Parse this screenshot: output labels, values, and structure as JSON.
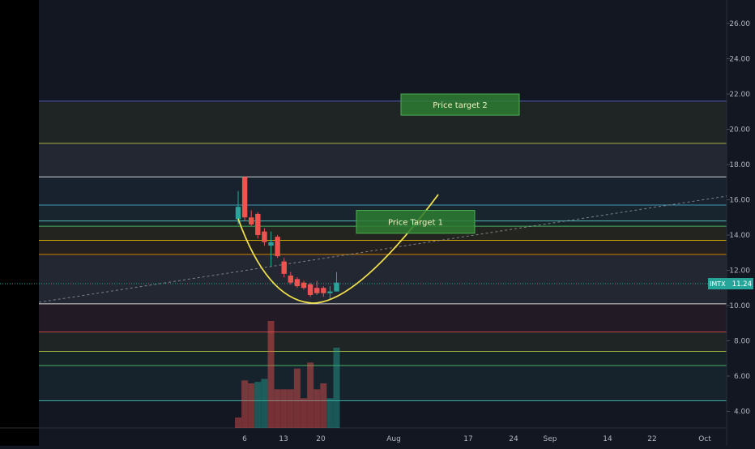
{
  "chart_data": {
    "type": "candlestick",
    "symbol": "IMTX",
    "last_price": "11.24",
    "y_ticks": [
      "4.00",
      "6.00",
      "8.00",
      "10.00",
      "12.00",
      "14.00",
      "16.00",
      "18.00",
      "20.00",
      "22.00",
      "24.00",
      "26.00"
    ],
    "x_ticks": [
      "6",
      "13",
      "20",
      "Aug",
      "17",
      "24",
      "Sep",
      "14",
      "22",
      "Oct"
    ],
    "candles": [
      {
        "o": 14.9,
        "h": 16.5,
        "l": 14.6,
        "c": 15.6
      },
      {
        "o": 17.3,
        "h": 17.3,
        "l": 14.8,
        "c": 15.0
      },
      {
        "o": 15.0,
        "h": 15.4,
        "l": 14.5,
        "c": 14.6
      },
      {
        "o": 15.2,
        "h": 15.3,
        "l": 13.8,
        "c": 14.0
      },
      {
        "o": 14.2,
        "h": 14.4,
        "l": 13.4,
        "c": 13.6
      },
      {
        "o": 13.4,
        "h": 14.2,
        "l": 12.2,
        "c": 13.6
      },
      {
        "o": 13.9,
        "h": 14.0,
        "l": 12.7,
        "c": 12.8
      },
      {
        "o": 12.5,
        "h": 12.7,
        "l": 11.6,
        "c": 11.8
      },
      {
        "o": 11.7,
        "h": 11.9,
        "l": 11.2,
        "c": 11.3
      },
      {
        "o": 11.5,
        "h": 11.6,
        "l": 11.0,
        "c": 11.1
      },
      {
        "o": 11.3,
        "h": 11.4,
        "l": 10.9,
        "c": 11.0
      },
      {
        "o": 11.2,
        "h": 11.3,
        "l": 10.5,
        "c": 10.6
      },
      {
        "o": 11.0,
        "h": 11.4,
        "l": 10.6,
        "c": 10.7
      },
      {
        "o": 11.0,
        "h": 11.1,
        "l": 10.5,
        "c": 10.7
      },
      {
        "o": 10.7,
        "h": 11.1,
        "l": 10.4,
        "c": 10.8
      },
      {
        "o": 10.8,
        "h": 11.9,
        "l": 10.8,
        "c": 11.3
      }
    ],
    "volumes": [
      {
        "v": 3.5,
        "up": false
      },
      {
        "v": 16,
        "up": false
      },
      {
        "v": 15,
        "up": false
      },
      {
        "v": 15.5,
        "up": true
      },
      {
        "v": 16.5,
        "up": true
      },
      {
        "v": 36,
        "up": false
      },
      {
        "v": 13,
        "up": false
      },
      {
        "v": 13,
        "up": false
      },
      {
        "v": 13,
        "up": false
      },
      {
        "v": 20,
        "up": false
      },
      {
        "v": 10,
        "up": false
      },
      {
        "v": 22,
        "up": false
      },
      {
        "v": 13,
        "up": false
      },
      {
        "v": 15,
        "up": false
      },
      {
        "v": 10,
        "up": true
      },
      {
        "v": 27,
        "up": true
      }
    ],
    "horizontal_levels": [
      {
        "price": 21.6,
        "color": "#5b5fc7"
      },
      {
        "price": 19.2,
        "color": "#b8c24a"
      },
      {
        "price": 17.3,
        "color": "#e8e8e8"
      },
      {
        "price": 15.7,
        "color": "#4aa3c4"
      },
      {
        "price": 14.8,
        "color": "#5ac4c4"
      },
      {
        "price": 14.5,
        "color": "#4cbf68"
      },
      {
        "price": 13.7,
        "color": "#e6b800"
      },
      {
        "price": 12.9,
        "color": "#e68a00"
      },
      {
        "price": 10.1,
        "color": "#e8e8e8"
      },
      {
        "price": 8.5,
        "color": "#d44a4a"
      },
      {
        "price": 7.4,
        "color": "#b5c94a"
      },
      {
        "price": 6.6,
        "color": "#4cbf68"
      },
      {
        "price": 4.6,
        "color": "#3fb8a8"
      }
    ],
    "annotations": [
      {
        "label": "Price target 2",
        "price_top": 22.0,
        "price_bottom": 20.8
      },
      {
        "label": "Price Target 1",
        "price_top": 15.4,
        "price_bottom": 14.1
      }
    ],
    "colors": {
      "background": "#131722",
      "up": "#26a69a",
      "down": "#ef5350",
      "curve": "#f3e24a",
      "price_label_bg": "#26a69a",
      "target_box": "#2e7d32"
    }
  }
}
